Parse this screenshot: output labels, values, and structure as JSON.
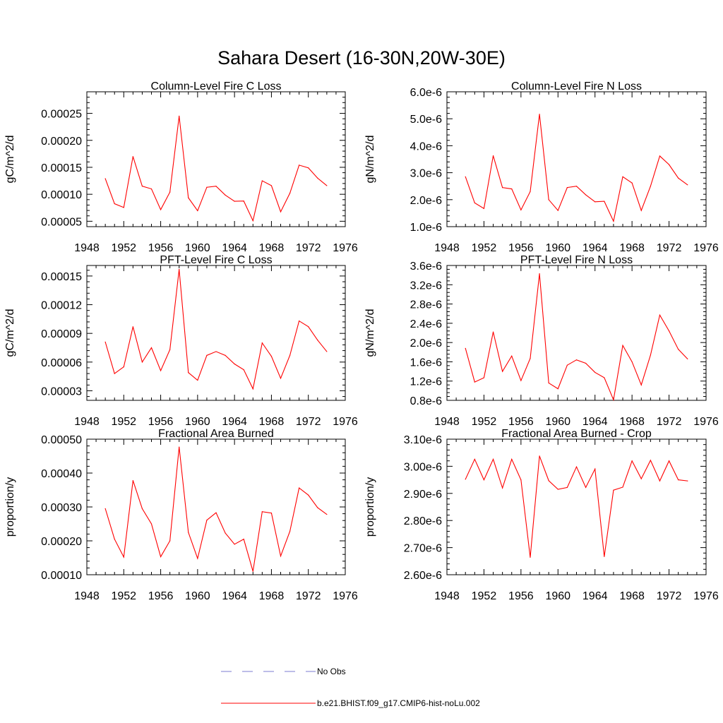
{
  "figure": {
    "title": "Sahara Desert (16-30N,20W-30E)",
    "legend": [
      {
        "label": "No Obs",
        "color": "#7b7bd0",
        "style": "dashed"
      },
      {
        "label": "b.e21.BHIST.f09_g17.CMIP6-hist-noLu.002",
        "color": "#ff0000",
        "style": "solid"
      }
    ]
  },
  "chart_data": [
    {
      "type": "line",
      "title": "Column-Level Fire C Loss",
      "ylabel": "gC/m^2/d",
      "xlim": [
        1948,
        1976
      ],
      "xticks": [
        1948,
        1952,
        1956,
        1960,
        1964,
        1968,
        1972,
        1976
      ],
      "ylim": [
        4e-05,
        0.00029
      ],
      "yticks": [
        5e-05,
        0.0001,
        0.00015,
        0.0002,
        0.00025
      ],
      "ytick_labels": [
        "0.00005",
        "0.00010",
        "0.00015",
        "0.00020",
        "0.00025"
      ],
      "x": [
        1950,
        1951,
        1952,
        1953,
        1954,
        1955,
        1956,
        1957,
        1958,
        1959,
        1960,
        1961,
        1962,
        1963,
        1964,
        1965,
        1966,
        1967,
        1968,
        1969,
        1970,
        1971,
        1972,
        1973,
        1974
      ],
      "series": [
        {
          "name": "b.e21.BHIST.f09_g17.CMIP6-hist-noLu.002",
          "color": "#ff0000",
          "values": [
            0.000129,
            8.25e-05,
            7.55e-05,
            0.00017,
            0.000115,
            0.00011,
            7.15e-05,
            0.000104,
            0.000245,
            9.35e-05,
            6.95e-05,
            0.000113,
            0.000115,
            9.85e-05,
            8.7e-05,
            8.75e-05,
            5.1e-05,
            0.000125,
            0.000116,
            6.75e-05,
            0.000102,
            0.000154,
            0.000149,
            0.00013,
            0.000116
          ]
        }
      ]
    },
    {
      "type": "line",
      "title": "Column-Level Fire N Loss",
      "ylabel": "gN/m^2/d",
      "xlim": [
        1948,
        1976
      ],
      "xticks": [
        1948,
        1952,
        1956,
        1960,
        1964,
        1968,
        1972,
        1976
      ],
      "ylim": [
        1e-06,
        6e-06
      ],
      "yticks": [
        1e-06,
        2e-06,
        3e-06,
        4e-06,
        5e-06,
        6e-06
      ],
      "ytick_labels": [
        "1.0e-6",
        "2.0e-6",
        "3.0e-6",
        "4.0e-6",
        "5.0e-6",
        "6.0e-6"
      ],
      "x": [
        1950,
        1951,
        1952,
        1953,
        1954,
        1955,
        1956,
        1957,
        1958,
        1959,
        1960,
        1961,
        1962,
        1963,
        1964,
        1965,
        1966,
        1967,
        1968,
        1969,
        1970,
        1971,
        1972,
        1973,
        1974
      ],
      "series": [
        {
          "name": "b.e21.BHIST.f09_g17.CMIP6-hist-noLu.002",
          "color": "#ff0000",
          "values": [
            2.85e-06,
            1.88e-06,
            1.67e-06,
            3.63e-06,
            2.45e-06,
            2.4e-06,
            1.62e-06,
            2.3e-06,
            5.17e-06,
            2e-06,
            1.6e-06,
            2.45e-06,
            2.5e-06,
            2.18e-06,
            1.92e-06,
            1.94e-06,
            1.2e-06,
            2.85e-06,
            2.62e-06,
            1.6e-06,
            2.5e-06,
            3.62e-06,
            3.3e-06,
            2.8e-06,
            2.55e-06
          ]
        }
      ]
    },
    {
      "type": "line",
      "title": "PFT-Level Fire C Loss",
      "ylabel": "gC/m^2/d",
      "xlim": [
        1948,
        1976
      ],
      "xticks": [
        1948,
        1952,
        1956,
        1960,
        1964,
        1968,
        1972,
        1976
      ],
      "ylim": [
        2e-05,
        0.000161
      ],
      "yticks": [
        3e-05,
        6e-05,
        9e-05,
        0.00012,
        0.00015
      ],
      "ytick_labels": [
        "0.00003",
        "0.00006",
        "0.00009",
        "0.00012",
        "0.00015"
      ],
      "x": [
        1950,
        1951,
        1952,
        1953,
        1954,
        1955,
        1956,
        1957,
        1958,
        1959,
        1960,
        1961,
        1962,
        1963,
        1964,
        1965,
        1966,
        1967,
        1968,
        1969,
        1970,
        1971,
        1972,
        1973,
        1974
      ],
      "series": [
        {
          "name": "b.e21.BHIST.f09_g17.CMIP6-hist-noLu.002",
          "color": "#ff0000",
          "values": [
            8.1e-05,
            4.8e-05,
            5.5e-05,
            9.7e-05,
            6e-05,
            7.5e-05,
            5.1e-05,
            7.3e-05,
            0.000157,
            4.9e-05,
            4.1e-05,
            6.7e-05,
            7.1e-05,
            6.7e-05,
            5.8e-05,
            5.2e-05,
            3.2e-05,
            8e-05,
            6.6e-05,
            4.3e-05,
            6.7e-05,
            0.000103,
            9.7e-05,
            8.3e-05,
            7.1e-05
          ]
        }
      ]
    },
    {
      "type": "line",
      "title": "PFT-Level Fire N Loss",
      "ylabel": "gN/m^2/d",
      "xlim": [
        1948,
        1976
      ],
      "xticks": [
        1948,
        1952,
        1956,
        1960,
        1964,
        1968,
        1972,
        1976
      ],
      "ylim": [
        8e-07,
        3.6e-06
      ],
      "yticks": [
        8e-07,
        1.2e-06,
        1.6e-06,
        2e-06,
        2.4e-06,
        2.8e-06,
        3.2e-06,
        3.6e-06
      ],
      "ytick_labels": [
        "0.8e-6",
        "1.2e-6",
        "1.6e-6",
        "2.0e-6",
        "2.4e-6",
        "2.8e-6",
        "3.2e-6",
        "3.6e-6"
      ],
      "x": [
        1950,
        1951,
        1952,
        1953,
        1954,
        1955,
        1956,
        1957,
        1958,
        1959,
        1960,
        1961,
        1962,
        1963,
        1964,
        1965,
        1966,
        1967,
        1968,
        1969,
        1970,
        1971,
        1972,
        1973,
        1974
      ],
      "series": [
        {
          "name": "b.e21.BHIST.f09_g17.CMIP6-hist-noLu.002",
          "color": "#ff0000",
          "values": [
            1.88e-06,
            1.18e-06,
            1.27e-06,
            2.22e-06,
            1.4e-06,
            1.72e-06,
            1.21e-06,
            1.67e-06,
            3.43e-06,
            1.16e-06,
            1.04e-06,
            1.53e-06,
            1.64e-06,
            1.57e-06,
            1.38e-06,
            1.27e-06,
            8.1e-07,
            1.94e-06,
            1.6e-06,
            1.12e-06,
            1.74e-06,
            2.57e-06,
            2.24e-06,
            1.86e-06,
            1.66e-06
          ]
        }
      ]
    },
    {
      "type": "line",
      "title": "Fractional Area Burned",
      "ylabel": "proportion/y",
      "xlim": [
        1948,
        1976
      ],
      "xticks": [
        1948,
        1952,
        1956,
        1960,
        1964,
        1968,
        1972,
        1976
      ],
      "ylim": [
        0.0001,
        0.0005
      ],
      "yticks": [
        0.0001,
        0.0002,
        0.0003,
        0.0004,
        0.0005
      ],
      "ytick_labels": [
        "0.00010",
        "0.00020",
        "0.00030",
        "0.00040",
        "0.00050"
      ],
      "x": [
        1950,
        1951,
        1952,
        1953,
        1954,
        1955,
        1956,
        1957,
        1958,
        1959,
        1960,
        1961,
        1962,
        1963,
        1964,
        1965,
        1966,
        1967,
        1968,
        1969,
        1970,
        1971,
        1972,
        1973,
        1974
      ],
      "series": [
        {
          "name": "b.e21.BHIST.f09_g17.CMIP6-hist-noLu.002",
          "color": "#ff0000",
          "values": [
            0.000295,
            0.000205,
            0.000152,
            0.000378,
            0.000295,
            0.00025,
            0.000153,
            0.0002,
            0.000477,
            0.000225,
            0.000148,
            0.000261,
            0.000283,
            0.000223,
            0.00019,
            0.000205,
            0.00011,
            0.000286,
            0.000282,
            0.000155,
            0.000228,
            0.000356,
            0.000335,
            0.000298,
            0.000278
          ]
        }
      ]
    },
    {
      "type": "line",
      "title": "Fractional Area Burned - Crop",
      "ylabel": "proportion/y",
      "xlim": [
        1948,
        1976
      ],
      "xticks": [
        1948,
        1952,
        1956,
        1960,
        1964,
        1968,
        1972,
        1976
      ],
      "ylim": [
        2.6e-06,
        3.1e-06
      ],
      "yticks": [
        2.6e-06,
        2.7e-06,
        2.8e-06,
        2.9e-06,
        3e-06,
        3.1e-06
      ],
      "ytick_labels": [
        "2.60e-6",
        "2.70e-6",
        "2.80e-6",
        "2.90e-6",
        "3.00e-6",
        "3.10e-6"
      ],
      "x": [
        1950,
        1951,
        1952,
        1953,
        1954,
        1955,
        1956,
        1957,
        1958,
        1959,
        1960,
        1961,
        1962,
        1963,
        1964,
        1965,
        1966,
        1967,
        1968,
        1969,
        1970,
        1971,
        1972,
        1973,
        1974
      ],
      "series": [
        {
          "name": "b.e21.BHIST.f09_g17.CMIP6-hist-noLu.002",
          "color": "#ff0000",
          "values": [
            2.952e-06,
            3.026e-06,
            2.95e-06,
            3.026e-06,
            2.92e-06,
            3.026e-06,
            2.95e-06,
            2.664e-06,
            3.038e-06,
            2.947e-06,
            2.915e-06,
            2.922e-06,
            2.998e-06,
            2.922e-06,
            2.99e-06,
            2.667e-06,
            2.912e-06,
            2.923e-06,
            3.02e-06,
            2.954e-06,
            3.022e-06,
            2.946e-06,
            3.02e-06,
            2.95e-06,
            2.946e-06
          ]
        }
      ]
    }
  ]
}
